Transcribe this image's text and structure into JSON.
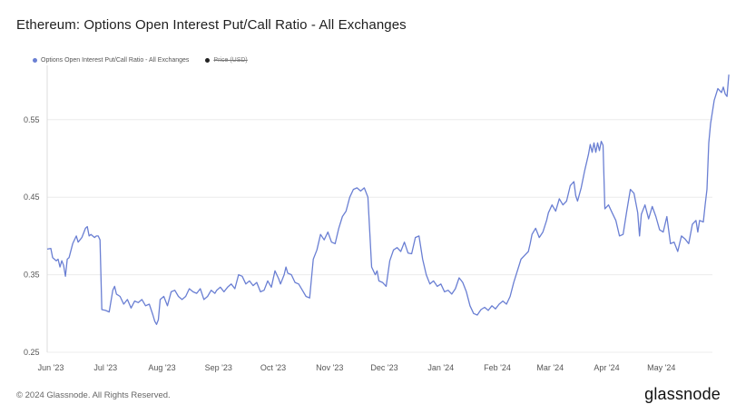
{
  "chart_data": {
    "type": "line",
    "title": "Ethereum: Options Open Interest Put/Call Ratio - All Exchanges",
    "xlabel": "",
    "ylabel": "",
    "ylim": [
      0.25,
      0.62
    ],
    "yticks": [
      0.25,
      0.35,
      0.45,
      0.55
    ],
    "ytick_labels": [
      "0.25",
      "0.35",
      "0.45",
      "0.55"
    ],
    "xticks": [
      "Jun '23",
      "Jul '23",
      "Aug '23",
      "Sep '23",
      "Oct '23",
      "Nov '23",
      "Dec '23",
      "Jan '24",
      "Feb '24",
      "Mar '24",
      "Apr '24",
      "May '24"
    ],
    "x_range": [
      0,
      365
    ],
    "xtick_positions": [
      0,
      30,
      61,
      92,
      122,
      153,
      183,
      214,
      245,
      274,
      305,
      335
    ],
    "legend": [
      {
        "label": "Options Open Interest Put/Call Ratio - All Exchanges",
        "color": "#6a7fd3",
        "enabled": true
      },
      {
        "label": "Price (USD)",
        "color": "#222222",
        "enabled": false
      }
    ],
    "series": [
      {
        "name": "Options Open Interest Put/Call Ratio - All Exchanges",
        "color": "#6a7fd3",
        "points": [
          [
            0,
            0.383
          ],
          [
            2,
            0.384
          ],
          [
            3,
            0.372
          ],
          [
            5,
            0.368
          ],
          [
            6,
            0.37
          ],
          [
            7,
            0.36
          ],
          [
            8,
            0.368
          ],
          [
            9,
            0.362
          ],
          [
            10,
            0.348
          ],
          [
            11,
            0.37
          ],
          [
            12,
            0.372
          ],
          [
            14,
            0.39
          ],
          [
            16,
            0.4
          ],
          [
            17,
            0.392
          ],
          [
            19,
            0.398
          ],
          [
            21,
            0.41
          ],
          [
            22,
            0.412
          ],
          [
            23,
            0.4
          ],
          [
            24,
            0.402
          ],
          [
            26,
            0.398
          ],
          [
            27,
            0.4
          ],
          [
            28,
            0.4
          ],
          [
            29,
            0.395
          ],
          [
            30,
            0.305
          ],
          [
            32,
            0.304
          ],
          [
            34,
            0.302
          ],
          [
            36,
            0.33
          ],
          [
            37,
            0.335
          ],
          [
            38,
            0.325
          ],
          [
            40,
            0.322
          ],
          [
            42,
            0.312
          ],
          [
            44,
            0.318
          ],
          [
            46,
            0.307
          ],
          [
            48,
            0.316
          ],
          [
            50,
            0.314
          ],
          [
            52,
            0.318
          ],
          [
            54,
            0.31
          ],
          [
            56,
            0.312
          ],
          [
            58,
            0.298
          ],
          [
            59,
            0.29
          ],
          [
            60,
            0.286
          ],
          [
            61,
            0.292
          ],
          [
            62,
            0.318
          ],
          [
            64,
            0.322
          ],
          [
            66,
            0.31
          ],
          [
            68,
            0.328
          ],
          [
            70,
            0.33
          ],
          [
            72,
            0.322
          ],
          [
            74,
            0.318
          ],
          [
            76,
            0.322
          ],
          [
            78,
            0.332
          ],
          [
            80,
            0.328
          ],
          [
            82,
            0.326
          ],
          [
            84,
            0.332
          ],
          [
            86,
            0.318
          ],
          [
            88,
            0.322
          ],
          [
            90,
            0.33
          ],
          [
            92,
            0.326
          ],
          [
            93,
            0.33
          ],
          [
            95,
            0.334
          ],
          [
            97,
            0.328
          ],
          [
            99,
            0.334
          ],
          [
            101,
            0.338
          ],
          [
            103,
            0.332
          ],
          [
            105,
            0.35
          ],
          [
            107,
            0.348
          ],
          [
            109,
            0.338
          ],
          [
            111,
            0.342
          ],
          [
            113,
            0.336
          ],
          [
            115,
            0.34
          ],
          [
            117,
            0.328
          ],
          [
            119,
            0.33
          ],
          [
            121,
            0.342
          ],
          [
            123,
            0.334
          ],
          [
            125,
            0.355
          ],
          [
            127,
            0.345
          ],
          [
            128,
            0.338
          ],
          [
            130,
            0.35
          ],
          [
            131,
            0.36
          ],
          [
            132,
            0.352
          ],
          [
            134,
            0.35
          ],
          [
            136,
            0.34
          ],
          [
            138,
            0.338
          ],
          [
            140,
            0.33
          ],
          [
            142,
            0.322
          ],
          [
            144,
            0.32
          ],
          [
            146,
            0.37
          ],
          [
            148,
            0.382
          ],
          [
            150,
            0.402
          ],
          [
            152,
            0.395
          ],
          [
            154,
            0.405
          ],
          [
            156,
            0.392
          ],
          [
            158,
            0.39
          ],
          [
            160,
            0.41
          ],
          [
            162,
            0.425
          ],
          [
            164,
            0.432
          ],
          [
            166,
            0.45
          ],
          [
            168,
            0.46
          ],
          [
            170,
            0.462
          ],
          [
            172,
            0.458
          ],
          [
            174,
            0.462
          ],
          [
            176,
            0.45
          ],
          [
            178,
            0.36
          ],
          [
            180,
            0.35
          ],
          [
            181,
            0.355
          ],
          [
            182,
            0.342
          ],
          [
            184,
            0.34
          ],
          [
            186,
            0.335
          ],
          [
            188,
            0.368
          ],
          [
            190,
            0.382
          ],
          [
            192,
            0.385
          ],
          [
            194,
            0.38
          ],
          [
            196,
            0.392
          ],
          [
            198,
            0.378
          ],
          [
            200,
            0.377
          ],
          [
            202,
            0.398
          ],
          [
            204,
            0.4
          ],
          [
            206,
            0.37
          ],
          [
            208,
            0.35
          ],
          [
            210,
            0.338
          ],
          [
            212,
            0.342
          ],
          [
            214,
            0.335
          ],
          [
            216,
            0.338
          ],
          [
            218,
            0.328
          ],
          [
            220,
            0.33
          ],
          [
            222,
            0.325
          ],
          [
            224,
            0.332
          ],
          [
            226,
            0.346
          ],
          [
            228,
            0.34
          ],
          [
            230,
            0.328
          ],
          [
            232,
            0.31
          ],
          [
            234,
            0.3
          ],
          [
            236,
            0.298
          ],
          [
            238,
            0.305
          ],
          [
            240,
            0.308
          ],
          [
            242,
            0.304
          ],
          [
            244,
            0.31
          ],
          [
            246,
            0.306
          ],
          [
            248,
            0.312
          ],
          [
            250,
            0.316
          ],
          [
            252,
            0.312
          ],
          [
            254,
            0.322
          ],
          [
            256,
            0.34
          ],
          [
            258,
            0.355
          ],
          [
            260,
            0.37
          ],
          [
            262,
            0.375
          ],
          [
            264,
            0.38
          ],
          [
            265,
            0.39
          ],
          [
            266,
            0.402
          ],
          [
            268,
            0.41
          ],
          [
            270,
            0.398
          ],
          [
            272,
            0.405
          ],
          [
            274,
            0.42
          ],
          [
            275,
            0.43
          ],
          [
            277,
            0.44
          ],
          [
            279,
            0.432
          ],
          [
            281,
            0.448
          ],
          [
            283,
            0.44
          ],
          [
            285,
            0.445
          ],
          [
            287,
            0.465
          ],
          [
            289,
            0.47
          ],
          [
            290,
            0.452
          ],
          [
            291,
            0.445
          ],
          [
            293,
            0.462
          ],
          [
            295,
            0.485
          ],
          [
            297,
            0.505
          ],
          [
            298,
            0.518
          ],
          [
            299,
            0.508
          ],
          [
            300,
            0.52
          ],
          [
            301,
            0.508
          ],
          [
            302,
            0.52
          ],
          [
            303,
            0.51
          ],
          [
            304,
            0.522
          ],
          [
            305,
            0.517
          ],
          [
            306,
            0.435
          ],
          [
            308,
            0.44
          ],
          [
            310,
            0.43
          ],
          [
            312,
            0.42
          ],
          [
            314,
            0.4
          ],
          [
            316,
            0.402
          ],
          [
            318,
            0.432
          ],
          [
            320,
            0.46
          ],
          [
            322,
            0.455
          ],
          [
            324,
            0.43
          ],
          [
            325,
            0.4
          ],
          [
            326,
            0.428
          ],
          [
            328,
            0.44
          ],
          [
            330,
            0.422
          ],
          [
            332,
            0.438
          ],
          [
            334,
            0.425
          ],
          [
            336,
            0.408
          ],
          [
            338,
            0.405
          ],
          [
            340,
            0.425
          ],
          [
            342,
            0.39
          ],
          [
            344,
            0.392
          ],
          [
            346,
            0.38
          ],
          [
            348,
            0.4
          ],
          [
            350,
            0.396
          ],
          [
            352,
            0.39
          ],
          [
            354,
            0.415
          ],
          [
            356,
            0.42
          ],
          [
            357,
            0.405
          ],
          [
            358,
            0.42
          ],
          [
            360,
            0.418
          ],
          [
            361,
            0.44
          ],
          [
            362,
            0.46
          ],
          [
            363,
            0.52
          ],
          [
            364,
            0.545
          ],
          [
            366,
            0.575
          ],
          [
            368,
            0.59
          ],
          [
            370,
            0.585
          ],
          [
            371,
            0.592
          ],
          [
            372,
            0.583
          ],
          [
            373,
            0.58
          ],
          [
            374,
            0.608
          ]
        ]
      }
    ]
  },
  "footer": {
    "copyright": "© 2024 Glassnode. All Rights Reserved.",
    "brand": "glassnode"
  }
}
